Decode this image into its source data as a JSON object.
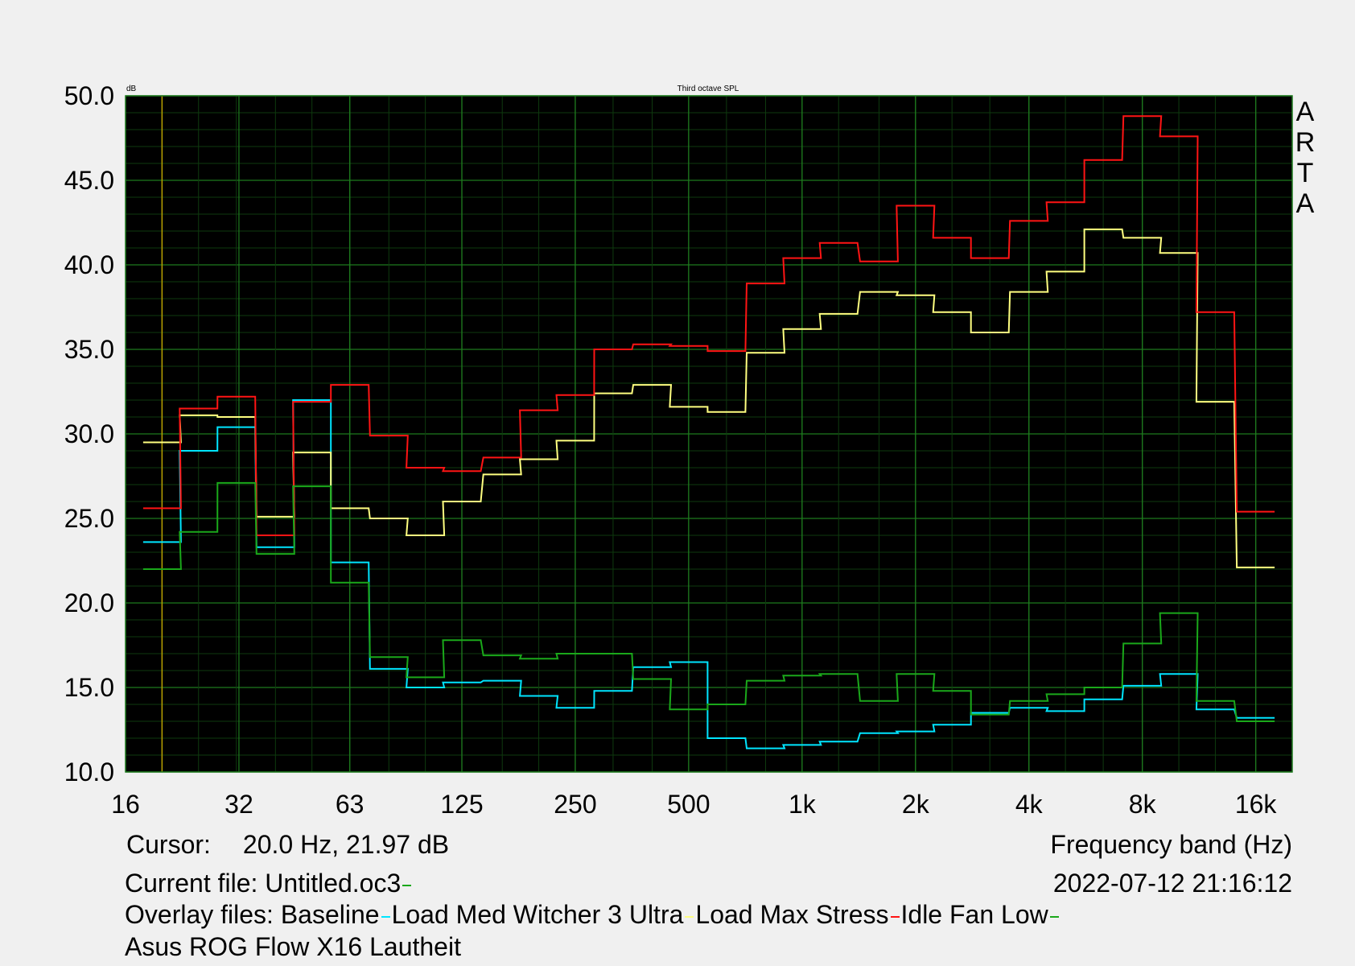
{
  "chart_data": {
    "type": "line",
    "title": "Third octave SPL",
    "yunit": "dB",
    "xlabel": "Frequency band (Hz)",
    "xscale": "log",
    "xlim": [
      16,
      20000
    ],
    "ylim": [
      10,
      50
    ],
    "grid": true,
    "background": "#000000",
    "grid_color": "#1e7a1e",
    "y_ticks": [
      "50.0",
      "45.0",
      "40.0",
      "35.0",
      "30.0",
      "25.0",
      "20.0",
      "15.0",
      "10.0"
    ],
    "x_ticks": [
      {
        "label": "16",
        "value": 16
      },
      {
        "label": "32",
        "value": 32
      },
      {
        "label": "63",
        "value": 63
      },
      {
        "label": "125",
        "value": 125
      },
      {
        "label": "250",
        "value": 250
      },
      {
        "label": "500",
        "value": 500
      },
      {
        "label": "1k",
        "value": 1000
      },
      {
        "label": "2k",
        "value": 2000
      },
      {
        "label": "4k",
        "value": 4000
      },
      {
        "label": "8k",
        "value": 8000
      },
      {
        "label": "16k",
        "value": 16000
      }
    ],
    "bands": [
      20,
      25,
      31.5,
      40,
      50,
      63,
      80,
      100,
      125,
      160,
      200,
      250,
      315,
      400,
      500,
      630,
      800,
      1000,
      1250,
      1600,
      2000,
      2500,
      3150,
      4000,
      5000,
      6300,
      8000,
      10000,
      12500,
      16000
    ],
    "cursor_freq": 20,
    "series": [
      {
        "name": "Baseline",
        "color": "#00e5ff",
        "values": [
          23.6,
          29.0,
          30.4,
          23.3,
          32.0,
          22.4,
          16.1,
          15.0,
          15.3,
          15.4,
          14.5,
          13.8,
          14.8,
          16.2,
          16.5,
          12.0,
          11.4,
          11.6,
          11.8,
          12.3,
          12.4,
          12.8,
          13.5,
          13.8,
          13.6,
          14.3,
          15.1,
          15.8,
          13.7,
          13.2
        ]
      },
      {
        "name": "Load Med Witcher 3 Ultra",
        "color": "#ffff80",
        "values": [
          29.5,
          31.1,
          31.0,
          25.1,
          28.9,
          25.6,
          25.0,
          24.0,
          26.0,
          27.6,
          28.5,
          29.6,
          32.4,
          32.9,
          31.6,
          31.3,
          34.8,
          36.2,
          37.1,
          38.4,
          38.2,
          37.2,
          36.0,
          38.4,
          39.6,
          42.1,
          41.6,
          40.7,
          31.9,
          22.1
        ]
      },
      {
        "name": "Load Max Stress",
        "color": "#ff1414",
        "values": [
          25.6,
          31.5,
          32.2,
          24.0,
          31.9,
          32.9,
          29.9,
          28.0,
          27.8,
          28.6,
          31.4,
          32.3,
          35.0,
          35.3,
          35.2,
          34.9,
          38.9,
          40.4,
          41.3,
          40.2,
          43.5,
          41.6,
          40.4,
          42.6,
          43.7,
          46.2,
          48.8,
          47.6,
          37.2,
          25.4
        ]
      },
      {
        "name": "Idle Fan Low",
        "color": "#1aa81a",
        "values": [
          22.0,
          24.2,
          27.1,
          22.9,
          26.9,
          21.2,
          16.8,
          15.6,
          17.8,
          16.9,
          16.7,
          17.0,
          17.0,
          15.5,
          13.7,
          14.0,
          15.4,
          15.7,
          15.8,
          14.2,
          15.8,
          14.8,
          13.4,
          14.2,
          14.6,
          15.0,
          17.6,
          19.4,
          14.2,
          13.0
        ]
      }
    ]
  },
  "branding": [
    "A",
    "R",
    "T",
    "A"
  ],
  "info": {
    "cursor_label": "Cursor:",
    "cursor_value": "20.0 Hz, 21.97 dB",
    "freq_label": "Frequency band (Hz)",
    "current_file_label": "Current file:",
    "current_file": "Untitled.oc3",
    "current_file_color": "#1aa81a",
    "datetime": "2022-07-12  21:16:12",
    "overlay_label": "Overlay files:",
    "caption": "Asus ROG Flow X16 Lautheit"
  }
}
